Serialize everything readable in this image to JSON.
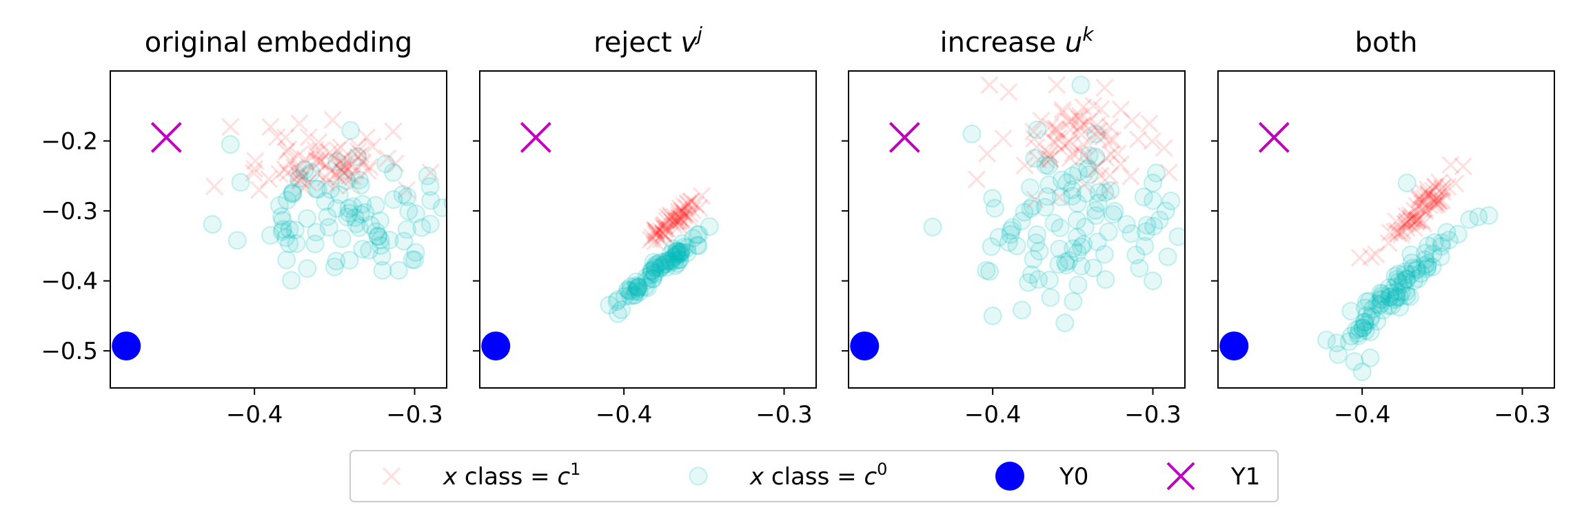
{
  "chart_data": {
    "type": "scatter",
    "shared_y": true,
    "xlim": [
      -0.49,
      -0.28
    ],
    "ylim": [
      -0.553,
      -0.1
    ],
    "xticks": [
      -0.4,
      -0.3
    ],
    "yticks": [
      -0.2,
      -0.3,
      -0.4,
      -0.5
    ],
    "xtick_labels": [
      "−0.4",
      "−0.3"
    ],
    "ytick_labels": [
      "−0.2",
      "−0.3",
      "−0.4",
      "−0.5"
    ],
    "colors": {
      "c1": "#ff0000",
      "c0": "#00bfbf",
      "Y0": "#0000ff",
      "Y1": "#bf00bf"
    },
    "legend": {
      "placement": "bottom-center",
      "entries": [
        {
          "key": "c1",
          "marker": "x",
          "prefix": "x",
          "middle": " class = ",
          "base": "c",
          "sup": "1"
        },
        {
          "key": "c0",
          "marker": "o",
          "prefix": "x",
          "middle": " class = ",
          "base": "c",
          "sup": "0"
        },
        {
          "key": "Y0",
          "marker": "big-dot",
          "text": "Y0"
        },
        {
          "key": "Y1",
          "marker": "big-x",
          "text": "Y1"
        }
      ]
    },
    "panels": [
      {
        "title_main": "original embedding",
        "title_var": "",
        "title_sup": "",
        "Y0": [
          -0.48,
          -0.493
        ],
        "Y1": [
          -0.455,
          -0.195
        ],
        "c1": {
          "center": [
            -0.355,
            -0.23
          ],
          "sd": [
            0.018,
            0.022
          ],
          "n": 70,
          "seed": 11,
          "extra": [
            [
              -0.415,
              -0.18
            ],
            [
              -0.425,
              -0.265
            ],
            [
              -0.397,
              -0.27
            ],
            [
              -0.39,
              -0.18
            ],
            [
              -0.372,
              -0.175
            ],
            [
              -0.29,
              -0.245
            ],
            [
              -0.305,
              -0.27
            ],
            [
              -0.33,
              -0.195
            ],
            [
              -0.317,
              -0.225
            ],
            [
              -0.4,
              -0.24
            ],
            [
              -0.38,
              -0.215
            ]
          ]
        },
        "c0": {
          "center": [
            -0.345,
            -0.31
          ],
          "sd": [
            0.03,
            0.035
          ],
          "n": 80,
          "seed": 23,
          "extra": [
            [
              -0.415,
              -0.205
            ],
            [
              -0.39,
              -0.335
            ],
            [
              -0.38,
              -0.37
            ],
            [
              -0.34,
              -0.185
            ],
            [
              -0.3,
              -0.37
            ],
            [
              -0.31,
              -0.385
            ],
            [
              -0.29,
              -0.285
            ],
            [
              -0.292,
              -0.25
            ],
            [
              -0.32,
              -0.385
            ],
            [
              -0.35,
              -0.38
            ]
          ]
        }
      },
      {
        "title_main": "reject ",
        "title_var": "v",
        "title_sup": "j",
        "Y0": [
          -0.48,
          -0.493
        ],
        "Y1": [
          -0.455,
          -0.195
        ],
        "c1": {
          "center": [
            -0.369,
            -0.315
          ],
          "sd": [
            0.003,
            0.015
          ],
          "n": 60,
          "seed": 37,
          "slope": 2.0,
          "extra": []
        },
        "c0": {
          "center": [
            -0.377,
            -0.383
          ],
          "sd": [
            0.004,
            0.025
          ],
          "n": 80,
          "seed": 41,
          "slope": 2.0,
          "extra": []
        }
      },
      {
        "title_main": "increase ",
        "title_var": "u",
        "title_sup": "k",
        "Y0": [
          -0.48,
          -0.493
        ],
        "Y1": [
          -0.455,
          -0.195
        ],
        "c1": {
          "center": [
            -0.345,
            -0.2
          ],
          "sd": [
            0.022,
            0.035
          ],
          "n": 70,
          "seed": 53,
          "extra": [
            [
              -0.402,
              -0.12
            ],
            [
              -0.39,
              -0.13
            ],
            [
              -0.36,
              -0.12
            ],
            [
              -0.41,
              -0.255
            ],
            [
              -0.293,
              -0.21
            ],
            [
              -0.29,
              -0.245
            ],
            [
              -0.38,
              -0.235
            ],
            [
              -0.32,
              -0.155
            ]
          ]
        },
        "c0": {
          "center": [
            -0.35,
            -0.33
          ],
          "sd": [
            0.03,
            0.055
          ],
          "n": 90,
          "seed": 67,
          "extra": [
            [
              -0.413,
              -0.19
            ],
            [
              -0.345,
              -0.12
            ],
            [
              -0.404,
              -0.385
            ],
            [
              -0.4,
              -0.45
            ],
            [
              -0.355,
              -0.46
            ],
            [
              -0.3,
              -0.4
            ],
            [
              -0.292,
              -0.3
            ],
            [
              -0.3,
              -0.26
            ],
            [
              -0.385,
              -0.35
            ],
            [
              -0.39,
              -0.345
            ]
          ]
        }
      },
      {
        "title_main": "both",
        "title_var": "",
        "title_sup": "",
        "Y0": [
          -0.48,
          -0.493
        ],
        "Y1": [
          -0.455,
          -0.195
        ],
        "c1": {
          "center": [
            -0.366,
            -0.305
          ],
          "sd": [
            0.005,
            0.03
          ],
          "n": 70,
          "seed": 71,
          "slope": 2.5,
          "extra": []
        },
        "c0": {
          "center": [
            -0.381,
            -0.42
          ],
          "sd": [
            0.006,
            0.045
          ],
          "n": 90,
          "seed": 83,
          "slope": 2.5,
          "extra": [
            [
              -0.4,
              -0.53
            ],
            [
              -0.395,
              -0.51
            ],
            [
              -0.372,
              -0.26
            ]
          ]
        }
      }
    ]
  }
}
